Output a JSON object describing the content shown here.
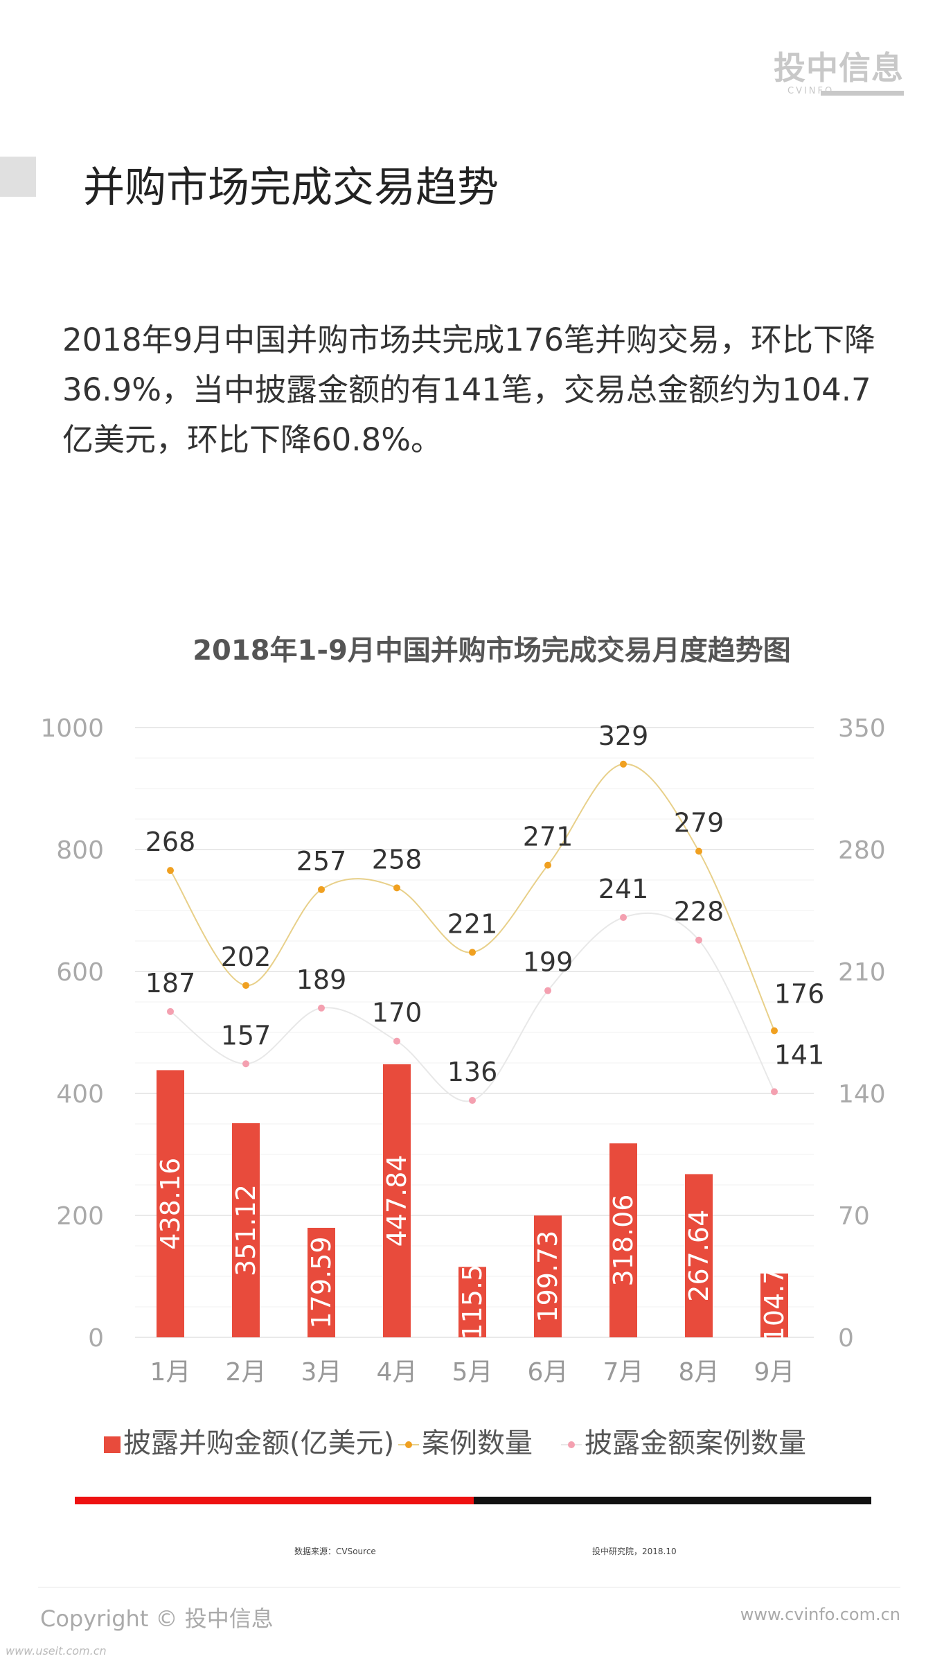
{
  "logo": {
    "text_cn": "投中信息",
    "text_en": "CVINFO"
  },
  "page_title": "并购市场完成交易趋势",
  "intro_text": "2018年9月中国并购市场共完成176笔并购交易，环比下降36.9%，当中披露金额的有141笔，交易总金额约为104.7亿美元，环比下降60.8%。",
  "chart_data": {
    "type": "bar",
    "title": "2018年1-9月中国并购市场完成交易月度趋势图",
    "categories": [
      "1月",
      "2月",
      "3月",
      "4月",
      "5月",
      "6月",
      "7月",
      "8月",
      "9月"
    ],
    "left_axis": {
      "range": [
        0,
        1000
      ],
      "ticks": [
        "0",
        "200",
        "400",
        "600",
        "800",
        "1000"
      ]
    },
    "right_axis": {
      "range": [
        0,
        350
      ],
      "ticks": [
        "0",
        "70",
        "140",
        "210",
        "280",
        "350"
      ]
    },
    "grid": true,
    "legend_position": "bottom",
    "series": [
      {
        "name": "披露并购金额(亿美元)",
        "type": "bar",
        "axis": "left",
        "color": "#e84b3c",
        "values": [
          438.16,
          351.12,
          179.59,
          447.84,
          115.5,
          199.73,
          318.06,
          267.64,
          104.7
        ],
        "labels": [
          "438.16",
          "351.12",
          "179.59",
          "447.84",
          "115.5",
          "199.73",
          "318.06",
          "267.64",
          "104.7"
        ]
      },
      {
        "name": "案例数量",
        "type": "line",
        "axis": "right",
        "color": "#f0a020",
        "line_color": "#e8d08a",
        "values": [
          268,
          202,
          257,
          258,
          221,
          271,
          329,
          279,
          176
        ],
        "labels": [
          "268",
          "202",
          "257",
          "258",
          "221",
          "271",
          "329",
          "279",
          "176"
        ]
      },
      {
        "name": "披露金额案例数量",
        "type": "line",
        "axis": "right",
        "color": "#f4a0b0",
        "line_color": "#e8e8e8",
        "values": [
          187,
          157,
          189,
          170,
          136,
          199,
          241,
          228,
          141
        ],
        "labels": [
          "187",
          "157",
          "189",
          "170",
          "136",
          "199",
          "241",
          "228",
          "141"
        ]
      }
    ]
  },
  "source_note": "数据来源：CVSource",
  "publisher_note": "投中研究院，2018.10",
  "copyright": "Copyright © 投中信息",
  "website": "www.cvinfo.com.cn",
  "watermark": "www.useit.com.cn"
}
